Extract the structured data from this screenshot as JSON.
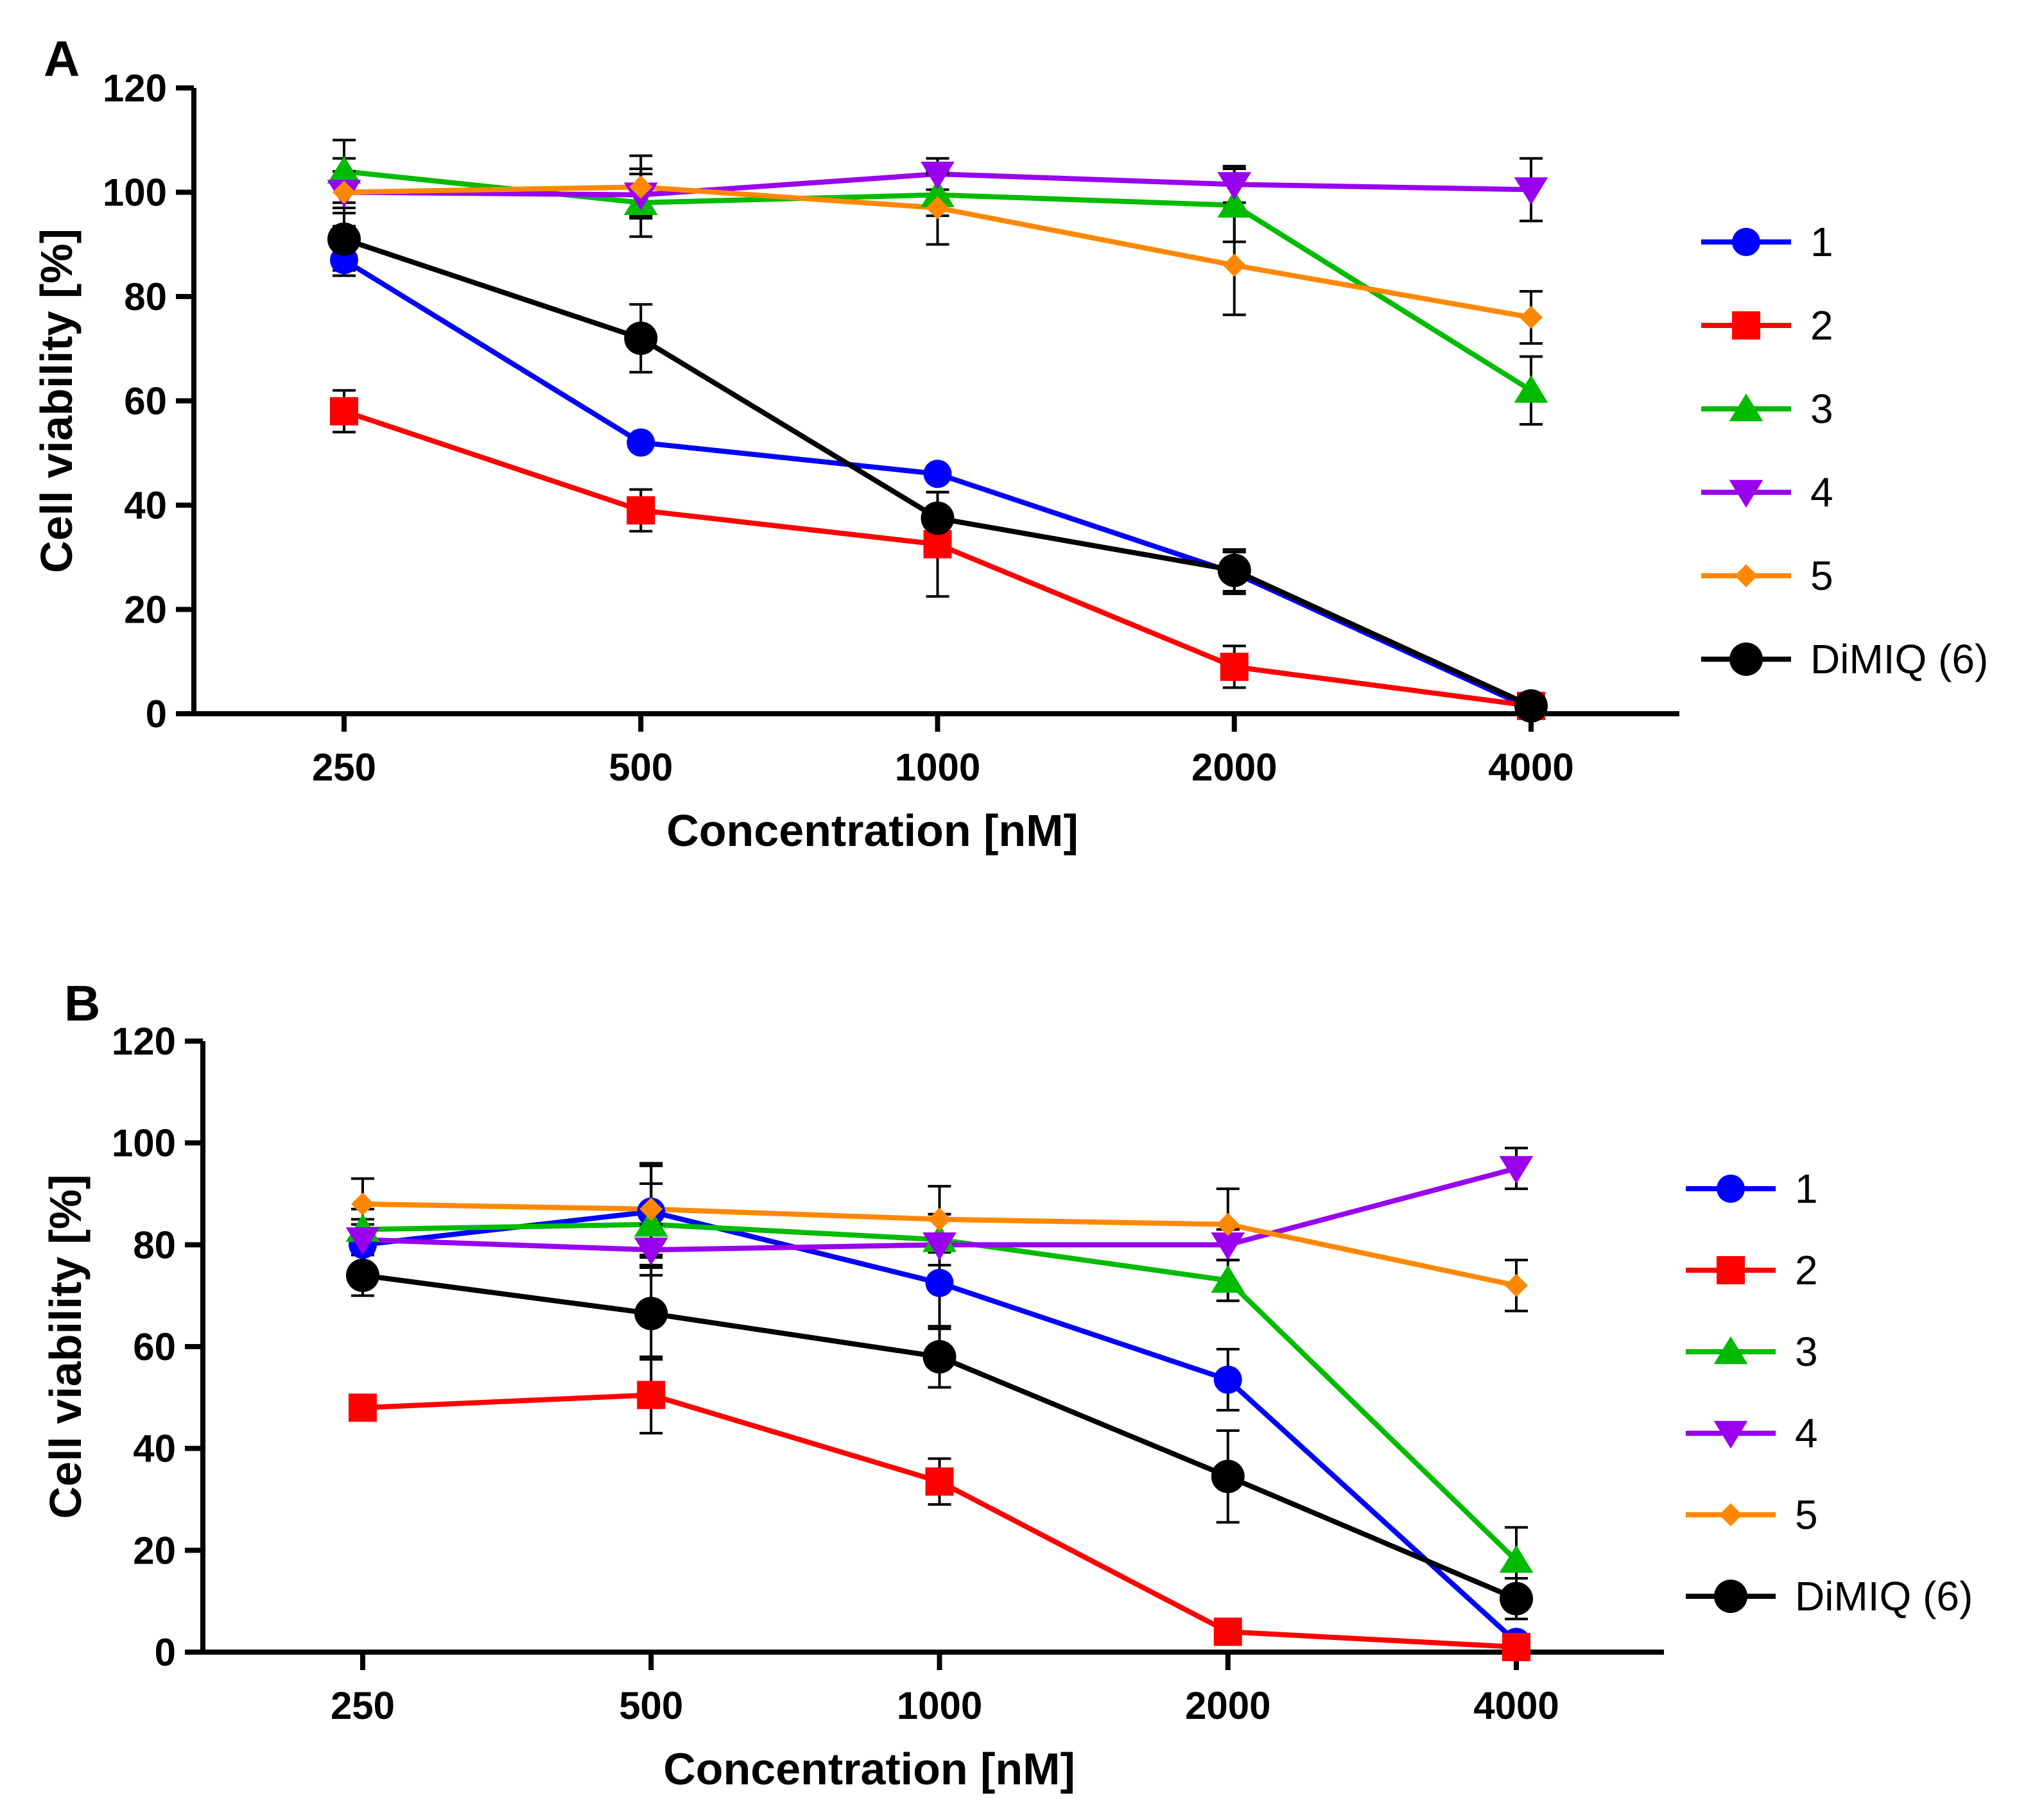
{
  "chart_data": [
    {
      "panel_label": "A",
      "type": "line",
      "xlabel": "Concentration [nM]",
      "ylabel": "Cell viability [%]",
      "categories": [
        "250",
        "500",
        "1000",
        "2000",
        "4000"
      ],
      "ylim": [
        0,
        120
      ],
      "yticks": [
        "0",
        "20",
        "40",
        "60",
        "80",
        "100",
        "120"
      ],
      "legend_position": "right",
      "series": [
        {
          "name": "1",
          "color": "#0000ff",
          "marker": "circle",
          "values": [
            87,
            52,
            46,
            27,
            1
          ],
          "errors": [
            3,
            1,
            1,
            4,
            1
          ]
        },
        {
          "name": "2",
          "color": "#ff0000",
          "marker": "square",
          "values": [
            58,
            39,
            32.5,
            9,
            1.5
          ],
          "errors": [
            4,
            4,
            10,
            4,
            1
          ]
        },
        {
          "name": "3",
          "color": "#00bb00",
          "marker": "triangle-up",
          "values": [
            104,
            98,
            99.5,
            97.5,
            62
          ],
          "errors": [
            6,
            6.5,
            4,
            7,
            6.5
          ]
        },
        {
          "name": "4",
          "color": "#9900ee",
          "marker": "triangle-down",
          "values": [
            100,
            99.5,
            103.5,
            101.5,
            100.5
          ],
          "errors": [
            4,
            4,
            3,
            3.5,
            6
          ]
        },
        {
          "name": "5",
          "color": "#ff8800",
          "marker": "diamond",
          "values": [
            100,
            101,
            97,
            86,
            76
          ],
          "errors": [
            6.5,
            6,
            7,
            9.5,
            5
          ]
        },
        {
          "name": "DiMIQ (6)",
          "color": "#000000",
          "marker": "circle-large",
          "values": [
            91,
            72,
            37.5,
            27.5,
            1.5
          ],
          "errors": [
            6,
            6.5,
            5,
            4,
            1
          ]
        }
      ]
    },
    {
      "panel_label": "B",
      "type": "line",
      "xlabel": "Concentration [nM]",
      "ylabel": "Cell viability [%]",
      "categories": [
        "250",
        "500",
        "1000",
        "2000",
        "4000"
      ],
      "ylim": [
        0,
        120
      ],
      "yticks": [
        "0",
        "20",
        "40",
        "60",
        "80",
        "100",
        "120"
      ],
      "legend_position": "right",
      "series": [
        {
          "name": "1",
          "color": "#0000ff",
          "marker": "circle",
          "values": [
            80,
            86.5,
            72.5,
            53.5,
            2
          ],
          "errors": [
            5,
            9,
            9,
            6,
            1
          ]
        },
        {
          "name": "2",
          "color": "#ff0000",
          "marker": "square",
          "values": [
            48,
            50.5,
            33.5,
            4,
            1
          ],
          "errors": [
            1,
            7.5,
            4.5,
            1,
            1
          ]
        },
        {
          "name": "3",
          "color": "#00bb00",
          "marker": "triangle-up",
          "values": [
            83,
            84,
            81,
            73,
            18
          ],
          "errors": [
            4,
            8,
            5,
            4,
            6.5
          ]
        },
        {
          "name": "4",
          "color": "#9900ee",
          "marker": "triangle-down",
          "values": [
            81,
            79,
            80,
            80,
            95
          ],
          "errors": [
            3,
            5,
            6,
            3,
            4
          ]
        },
        {
          "name": "5",
          "color": "#ff8800",
          "marker": "diamond",
          "values": [
            88,
            87,
            85,
            84,
            72
          ],
          "errors": [
            5,
            9,
            6.5,
            7,
            5
          ]
        },
        {
          "name": "DiMIQ (6)",
          "color": "#000000",
          "marker": "circle-large",
          "values": [
            74,
            66.5,
            58,
            34.5,
            10.5
          ],
          "errors": [
            4,
            9,
            6,
            9,
            4
          ]
        }
      ]
    }
  ]
}
